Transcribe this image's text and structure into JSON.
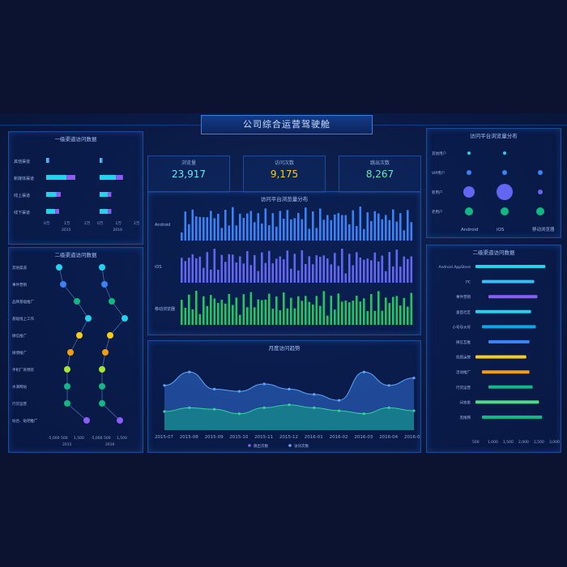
{
  "title": "公司综合运营驾驶舱",
  "colors": {
    "cyan": "#22d3ee",
    "blue": "#3b82f6",
    "purple": "#8b5cf6",
    "green": "#10b981",
    "yellow": "#facc15",
    "orange": "#f59e0b"
  },
  "stats": [
    {
      "label": "浏览量",
      "value": "23,917",
      "color": "#67e8f9"
    },
    {
      "label": "访问次数",
      "value": "9,175",
      "color": "#facc15"
    },
    {
      "label": "跳出次数",
      "value": "8,267",
      "color": "#6ee7b7"
    }
  ],
  "panels": {
    "level1": {
      "title": "一级渠道访问数据",
      "categories": [
        "其他渠道",
        "新媒体渠道",
        "线上渠道",
        "线下渠道"
      ],
      "xticks": [
        "0万",
        "1万",
        "2万"
      ],
      "years": [
        "2015",
        "2016"
      ]
    },
    "level2": {
      "title": "二级渠道访问数据",
      "categories": [
        "其他渠道",
        "事件营销",
        "品牌基础推广",
        "基础线上工作",
        "微信推广",
        "微博推广",
        "手机厂商预装",
        "水滴网站",
        "行货运营",
        "站台、贴吧推广"
      ],
      "xticks": [
        "-5,000",
        "500",
        "1,500"
      ],
      "years": [
        "2015",
        "2016"
      ]
    },
    "platform": {
      "title": "访问平台浏览量分布",
      "rows": [
        "Android",
        "iOS",
        "移动浏览器"
      ]
    },
    "trend": {
      "title": "月度访问趋势",
      "months": [
        "2015-07",
        "2015-08",
        "2015-09",
        "2015-10",
        "2015-11",
        "2015-12",
        "2016-01",
        "2016-02",
        "2016-03",
        "2016-04",
        "2016-05"
      ],
      "legend": [
        "跳出次数",
        "访问次数"
      ]
    },
    "bubble": {
      "title": "访问平台浏览量分布",
      "rows": [
        "其他用户",
        "VIP用户",
        "新用户",
        "老用户"
      ],
      "cols": [
        "Android",
        "iOS",
        "移动浏览器"
      ]
    },
    "level2right": {
      "title": "二级渠道访问数据",
      "categories": [
        "Android AppStore",
        "PC",
        "事件营销",
        "垂直社区",
        "小号导大号",
        "微信互推",
        "机搭运营",
        "活动推广",
        "行货运营",
        "问答类",
        "黑搜网"
      ],
      "xticks": [
        "500",
        "1,000",
        "1,500",
        "2,000",
        "2,500",
        "3,000"
      ]
    }
  },
  "chart_data": [
    {
      "type": "bar",
      "title": "一级渠道访问数据",
      "categories": [
        "其他渠道",
        "新媒体渠道",
        "线上渠道",
        "线下渠道"
      ],
      "series": [
        {
          "name": "2015",
          "values": [
            0.2,
            1.8,
            0.9,
            0.8
          ]
        },
        {
          "name": "2016",
          "values": [
            0.2,
            1.6,
            0.8,
            0.8
          ]
        }
      ],
      "xlim": [
        0,
        2.5
      ]
    },
    {
      "type": "line",
      "title": "月度访问趋势",
      "categories": [
        "2015-07",
        "2015-08",
        "2015-09",
        "2015-10",
        "2015-11",
        "2015-12",
        "2016-01",
        "2016-02",
        "2016-03",
        "2016-04",
        "2016-05"
      ],
      "series": [
        {
          "name": "访问次数",
          "values": [
            60,
            78,
            55,
            52,
            62,
            55,
            48,
            40,
            78,
            60,
            70
          ]
        },
        {
          "name": "跳出次数",
          "values": [
            25,
            30,
            28,
            22,
            30,
            34,
            30,
            26,
            22,
            30,
            26
          ]
        }
      ],
      "ylim": [
        0,
        100
      ]
    },
    {
      "type": "bar",
      "title": "二级渠道访问数据",
      "categories": [
        "Android AppStore",
        "PC",
        "事件营销",
        "垂直社区",
        "小号导大号",
        "微信互推",
        "机搭运营",
        "活动推广",
        "行货运营",
        "问答类",
        "黑搜网"
      ],
      "values": [
        2700,
        2350,
        2450,
        2250,
        2400,
        2200,
        2100,
        2200,
        2300,
        2500,
        2600
      ],
      "xlim": [
        500,
        3000
      ]
    }
  ]
}
